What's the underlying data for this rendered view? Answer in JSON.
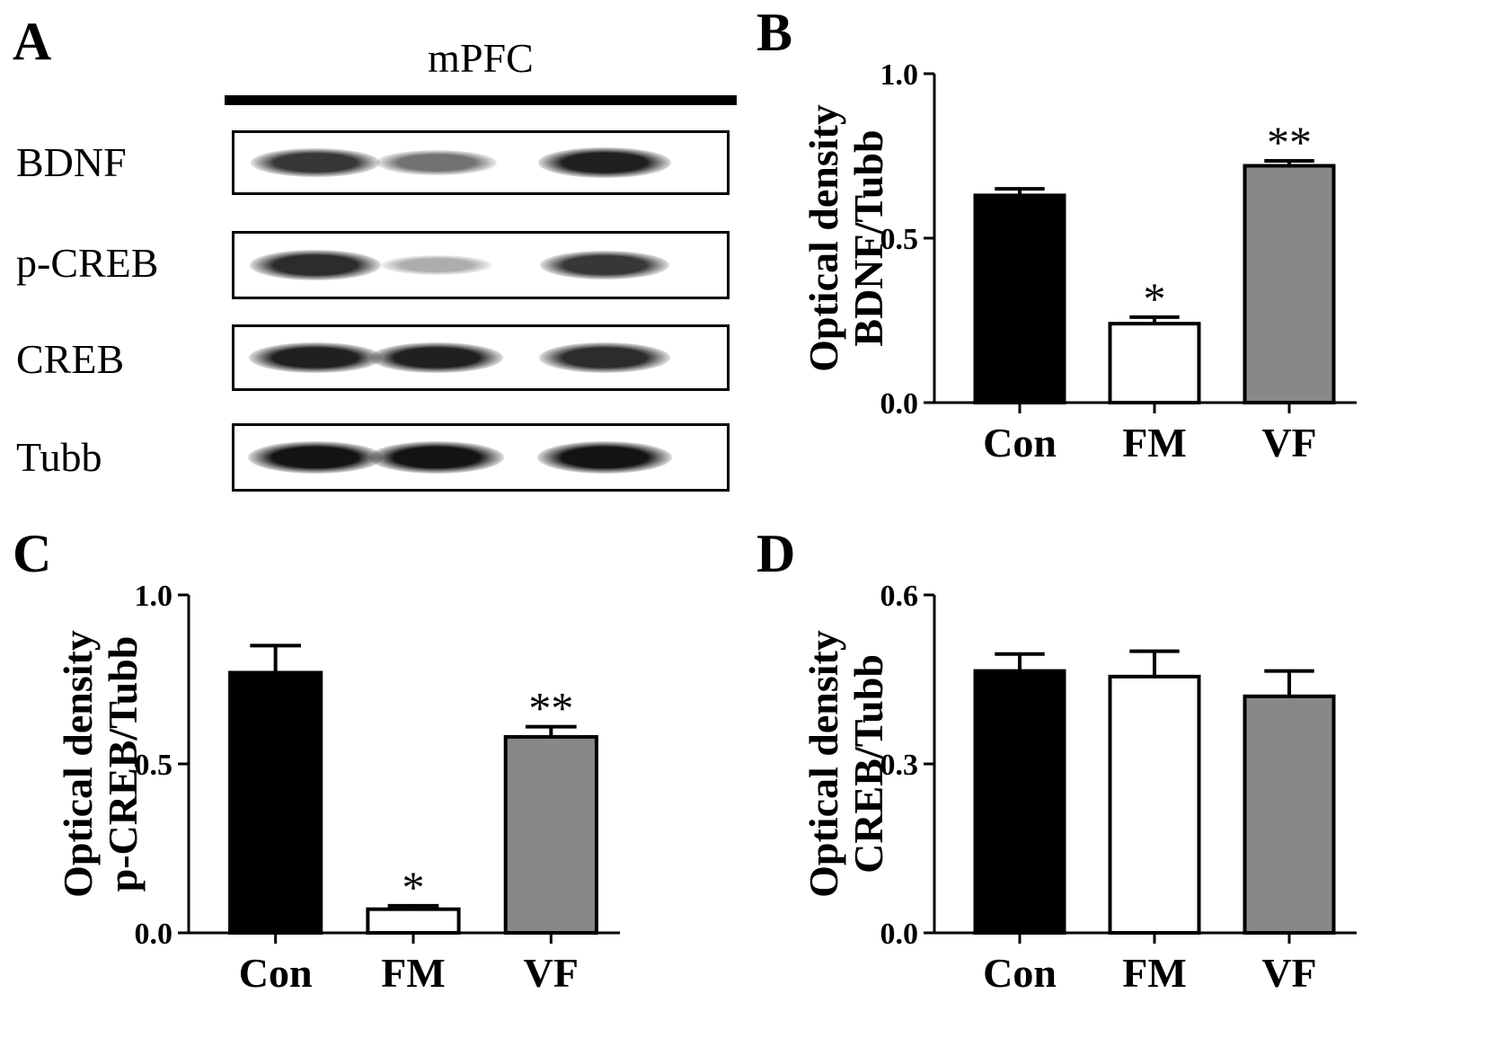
{
  "panels": {
    "A": "A",
    "B": "B",
    "C": "C",
    "D": "D"
  },
  "blot": {
    "region_title": "mPFC",
    "rows": [
      {
        "label": "BDNF",
        "intensities": [
          0.85,
          0.6,
          0.95
        ]
      },
      {
        "label": "p-CREB",
        "intensities": [
          0.9,
          0.35,
          0.85
        ]
      },
      {
        "label": "CREB",
        "intensities": [
          0.95,
          0.95,
          0.9
        ]
      },
      {
        "label": "Tubb",
        "intensities": [
          1.0,
          1.0,
          1.0
        ]
      }
    ]
  },
  "chart_data": [
    {
      "panel": "B",
      "type": "bar",
      "categories": [
        "Con",
        "FM",
        "VF"
      ],
      "values": [
        0.63,
        0.24,
        0.72
      ],
      "errors": [
        0.02,
        0.02,
        0.015
      ],
      "significance": [
        "",
        "*",
        "**"
      ],
      "colors": [
        "#000000",
        "#ffffff",
        "#888888"
      ],
      "ylabel_line1": "Optical density",
      "ylabel_line2": "BDNF/Tubb",
      "ylim": [
        0,
        1.0
      ],
      "yticks": [
        "0.0",
        "0.5",
        "1.0"
      ],
      "ytick_values": [
        0,
        0.5,
        1.0
      ]
    },
    {
      "panel": "C",
      "type": "bar",
      "categories": [
        "Con",
        "FM",
        "VF"
      ],
      "values": [
        0.77,
        0.07,
        0.58
      ],
      "errors": [
        0.08,
        0.01,
        0.03
      ],
      "significance": [
        "",
        "*",
        "**"
      ],
      "colors": [
        "#000000",
        "#ffffff",
        "#888888"
      ],
      "ylabel_line1": "Optical density",
      "ylabel_line2": "p-CREB/Tubb",
      "ylim": [
        0,
        1.0
      ],
      "yticks": [
        "0.0",
        "0.5",
        "1.0"
      ],
      "ytick_values": [
        0,
        0.5,
        1.0
      ]
    },
    {
      "panel": "D",
      "type": "bar",
      "categories": [
        "Con",
        "FM",
        "VF"
      ],
      "values": [
        0.465,
        0.455,
        0.42
      ],
      "errors": [
        0.03,
        0.045,
        0.045
      ],
      "significance": [
        "",
        "",
        ""
      ],
      "colors": [
        "#000000",
        "#ffffff",
        "#888888"
      ],
      "ylabel_line1": "Optical density",
      "ylabel_line2": "CREB/Tubb",
      "ylim": [
        0,
        0.6
      ],
      "yticks": [
        "0.0",
        "0.3",
        "0.6"
      ],
      "ytick_values": [
        0,
        0.3,
        0.6
      ]
    }
  ]
}
